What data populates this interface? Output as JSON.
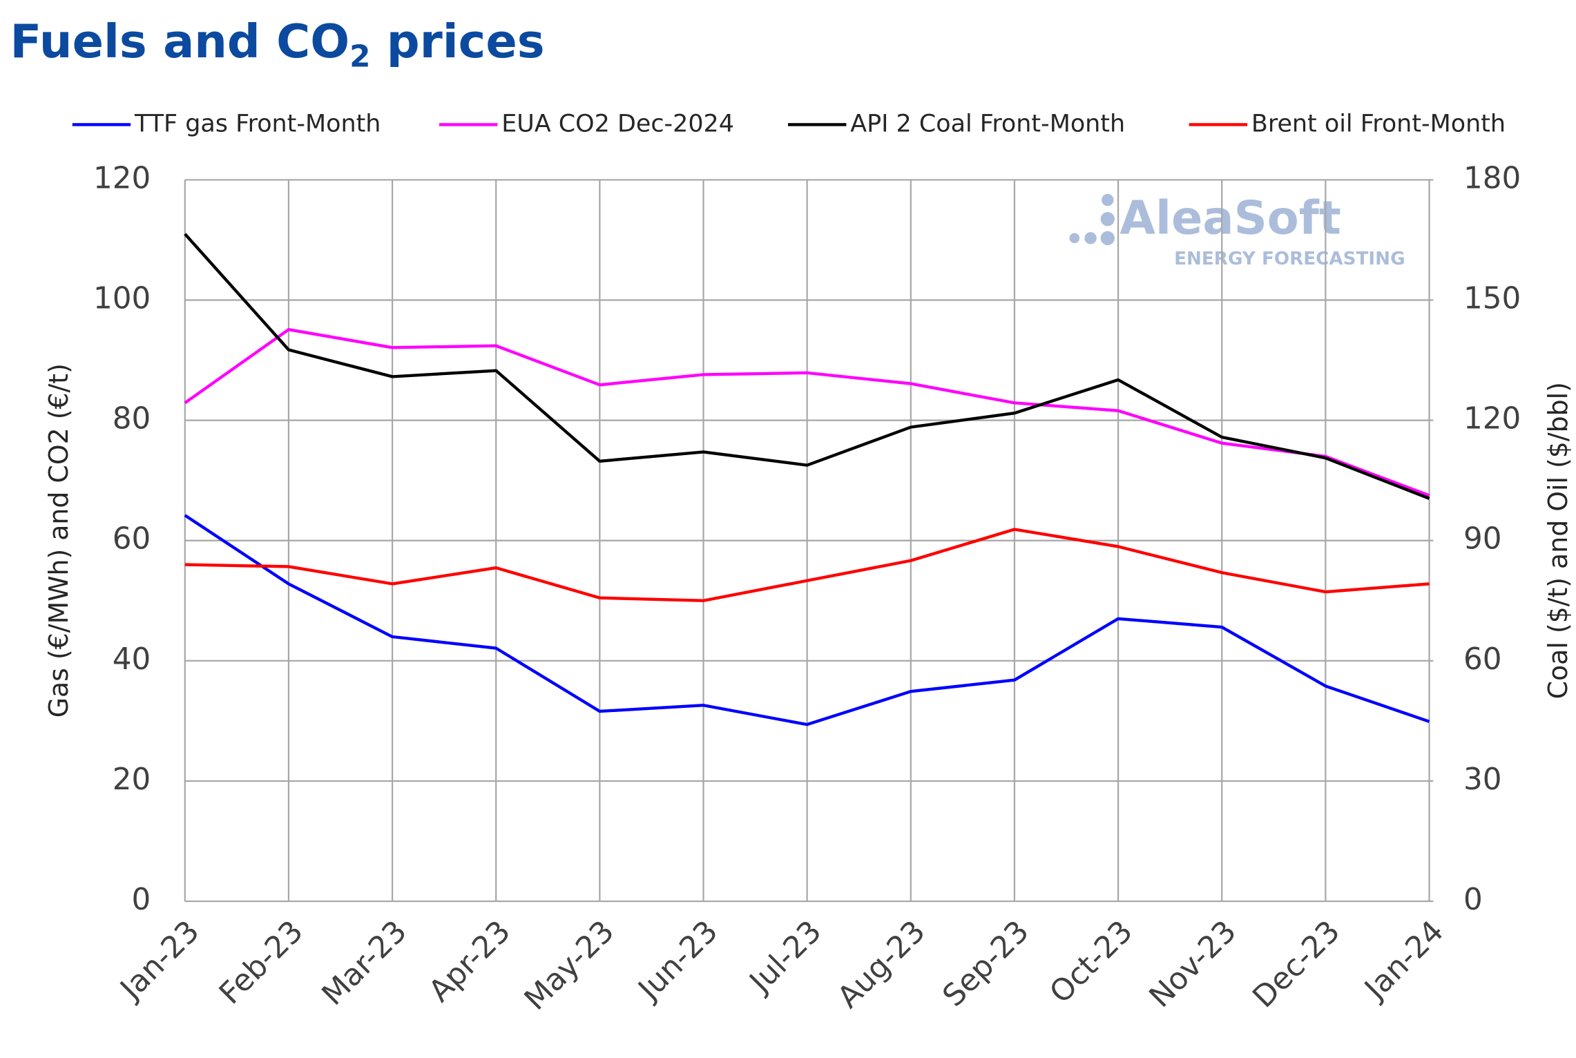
{
  "chart_data": {
    "type": "line",
    "title": [
      "Fuels and CO",
      "2",
      " prices"
    ],
    "watermark": [
      "AleaSoft",
      "ENERGY FORECASTING"
    ],
    "ylabel": "Gas (€/MWh) and CO2 (€/t)",
    "y2label": "Coal ($/t) and Oil ($/bbl)",
    "categories": [
      "Jan-23",
      "Feb-23",
      "Mar-23",
      "Apr-23",
      "May-23",
      "Jun-23",
      "Jul-23",
      "Aug-23",
      "Sep-23",
      "Oct-23",
      "Nov-23",
      "Dec-23",
      "Jan-24"
    ],
    "series": [
      {
        "name": "TTF gas Front-Month",
        "color": "#0000ff",
        "axis": "y",
        "values": [
          64.2,
          52.8,
          44.0,
          42.1,
          31.6,
          32.6,
          29.4,
          34.9,
          36.8,
          47.0,
          45.6,
          35.8,
          29.9
        ]
      },
      {
        "name": "EUA CO2 Dec-2024",
        "color": "#ff00ff",
        "axis": "y",
        "values": [
          82.9,
          95.1,
          92.1,
          92.4,
          85.9,
          87.6,
          87.9,
          86.1,
          82.9,
          81.6,
          76.2,
          74.0,
          67.5
        ]
      },
      {
        "name": "API 2 Coal Front-Month",
        "color": "#000000",
        "axis": "y2",
        "values": [
          166.5,
          137.6,
          130.9,
          132.4,
          109.8,
          112.1,
          108.8,
          118.3,
          121.8,
          130.1,
          115.8,
          110.6,
          100.5
        ]
      },
      {
        "name": "Brent oil Front-Month",
        "color": "#ff0000",
        "axis": "y2",
        "values": [
          84.0,
          83.5,
          79.2,
          83.2,
          75.7,
          75.0,
          80.0,
          85.0,
          92.8,
          88.5,
          82.0,
          77.2,
          79.2
        ]
      }
    ],
    "ylim": [
      0,
      120
    ],
    "yticks": [
      0,
      20,
      40,
      60,
      80,
      100,
      120
    ],
    "y2lim": [
      0,
      180
    ],
    "y2ticks": [
      0,
      30,
      60,
      90,
      120,
      150,
      180
    ],
    "grid": true,
    "legend": "top"
  }
}
